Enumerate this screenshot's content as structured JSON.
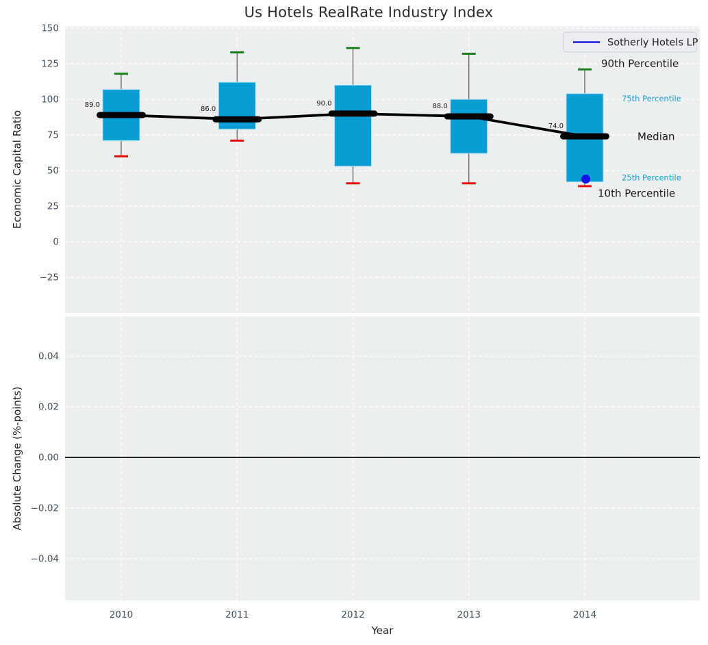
{
  "figure": {
    "title": "Us Hotels RealRate Industry Index",
    "background": "#ffffff",
    "plot_background": "#eceff0",
    "grid_color": "#ffffff",
    "tick_color": "#3f4d5c",
    "axis_label_color": "#1f1f1f",
    "title_color": "#2b2b2b"
  },
  "chart_data": [
    {
      "type": "boxplot",
      "title": "Us Hotels RealRate Industry Index",
      "categories": [
        "2010",
        "2011",
        "2012",
        "2013",
        "2014"
      ],
      "series": [
        {
          "role": "p90",
          "name": "90th Percentile",
          "values": [
            118,
            133,
            136,
            132,
            121
          ]
        },
        {
          "role": "p75",
          "name": "75th Percentile",
          "values": [
            107,
            112,
            110,
            100,
            104
          ]
        },
        {
          "role": "median",
          "name": "Median",
          "values": [
            89,
            86,
            90,
            88,
            74
          ]
        },
        {
          "role": "p25",
          "name": "25th Percentile",
          "values": [
            71,
            79,
            53,
            62,
            42
          ]
        },
        {
          "role": "p10",
          "name": "10th Percentile",
          "values": [
            60,
            71,
            41,
            41,
            39
          ]
        }
      ],
      "median_labels": [
        "89.0",
        "86.0",
        "90.0",
        "88.0",
        "74.0"
      ],
      "company_point": {
        "category": "2014",
        "value": 44,
        "label": "Sotherly Hotels LP"
      },
      "ylabel": "Economic Capital Ratio",
      "yticks": [
        150,
        125,
        100,
        75,
        50,
        25,
        0,
        -25
      ],
      "ytick_labels": [
        "150",
        "125",
        "100",
        "75",
        "50",
        "25",
        "0",
        "−25"
      ],
      "ylim": [
        -50,
        151.5
      ],
      "grid": true,
      "legend": {
        "label": "Sotherly Hotels LP",
        "line_color": "#1414e0",
        "position": "upper right"
      },
      "annotations": [
        {
          "ref": "p90",
          "text": "90th Percentile",
          "color": "#1a1a1a",
          "size": 15
        },
        {
          "ref": "p75",
          "text": "75th Percentile",
          "color": "#1b9ace",
          "size": 11.5
        },
        {
          "ref": "median",
          "text": "Median",
          "color": "#1a1a1a",
          "size": 15
        },
        {
          "ref": "p25",
          "text": "25th Percentile",
          "color": "#1b9ace",
          "size": 11.5
        },
        {
          "ref": "p10",
          "text": "10th Percentile",
          "color": "#1a1a1a",
          "size": 15
        }
      ],
      "colors": {
        "box_fill": "#089dd3",
        "box_edge": "#b3dff0",
        "whisker": "#5f5f5f",
        "cap_top": "#1e7d1e",
        "cap_bottom": "#e60a0a",
        "median_line": "#000000",
        "trend_line": "#000000",
        "company_dot": "#1414e0"
      }
    },
    {
      "type": "line",
      "categories": [
        "2010",
        "2011",
        "2012",
        "2013",
        "2014"
      ],
      "series": [],
      "ylabel": "Absolute Change (%-points)",
      "yticks": [
        0.04,
        0.02,
        0,
        -0.02,
        -0.04
      ],
      "ytick_labels": [
        "0.04",
        "0.02",
        "0.00",
        "−0.02",
        "−0.04"
      ],
      "ylim": [
        -0.0565,
        0.0557
      ],
      "zero_line": true,
      "grid": true,
      "xlabel": "Year"
    }
  ]
}
